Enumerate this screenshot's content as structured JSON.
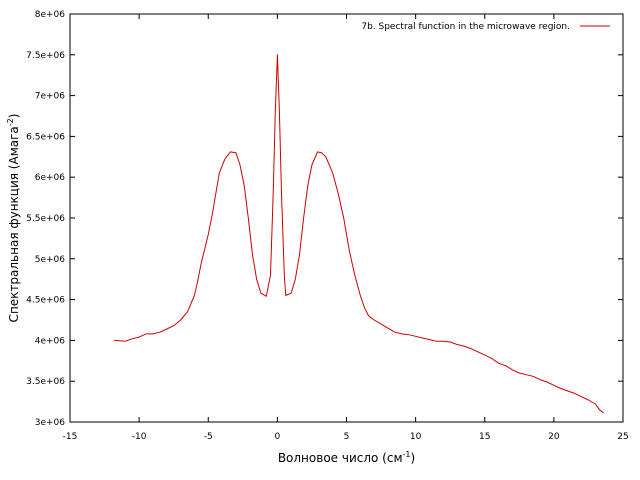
{
  "chart_data": {
    "type": "line",
    "title": "",
    "xlabel": "Волновое число (см",
    "xlabel_sup": "-1",
    "xlabel_end": ")",
    "ylabel": "Спектральная функция (Амага",
    "ylabel_sup": "-2",
    "ylabel_end": ")",
    "xlim": [
      -15,
      25
    ],
    "ylim": [
      3000000,
      8000000
    ],
    "xticks": [
      -15,
      -10,
      -5,
      0,
      5,
      10,
      15,
      20,
      25
    ],
    "xtick_labels": [
      "-15",
      "-10",
      "-5",
      "0",
      "5",
      "10",
      "15",
      "20",
      "25"
    ],
    "yticks": [
      3000000,
      3500000,
      4000000,
      4500000,
      5000000,
      5500000,
      6000000,
      6500000,
      7000000,
      7500000,
      8000000
    ],
    "ytick_labels": [
      "3e+06",
      "3.5e+06",
      "4e+06",
      "4.5e+06",
      "5e+06",
      "5.5e+06",
      "6e+06",
      "6.5e+06",
      "7e+06",
      "7.5e+06",
      "8e+06"
    ],
    "grid": false,
    "legend_position": "top-right",
    "series": [
      {
        "name": "7b. Spectral function in the microwave region.",
        "color": "#cc0000",
        "points": [
          [
            -11.8,
            4000000
          ],
          [
            -11.0,
            3990000
          ],
          [
            -10.5,
            4020000
          ],
          [
            -10.0,
            4040000
          ],
          [
            -9.5,
            4080000
          ],
          [
            -9.0,
            4080000
          ],
          [
            -8.5,
            4100000
          ],
          [
            -8.0,
            4140000
          ],
          [
            -7.5,
            4180000
          ],
          [
            -7.0,
            4250000
          ],
          [
            -6.5,
            4350000
          ],
          [
            -6.0,
            4550000
          ],
          [
            -5.8,
            4700000
          ],
          [
            -5.5,
            4950000
          ],
          [
            -5.0,
            5300000
          ],
          [
            -4.7,
            5550000
          ],
          [
            -4.4,
            5850000
          ],
          [
            -4.2,
            6050000
          ],
          [
            -3.8,
            6220000
          ],
          [
            -3.4,
            6310000
          ],
          [
            -3.0,
            6300000
          ],
          [
            -2.7,
            6150000
          ],
          [
            -2.4,
            5900000
          ],
          [
            -2.1,
            5500000
          ],
          [
            -1.8,
            5050000
          ],
          [
            -1.5,
            4750000
          ],
          [
            -1.2,
            4580000
          ],
          [
            -0.8,
            4540000
          ],
          [
            -0.5,
            4800000
          ],
          [
            -0.3,
            5800000
          ],
          [
            -0.15,
            6800000
          ],
          [
            0.0,
            7500000
          ],
          [
            0.15,
            6800000
          ],
          [
            0.3,
            5800000
          ],
          [
            0.5,
            4800000
          ],
          [
            0.6,
            4550000
          ],
          [
            1.0,
            4580000
          ],
          [
            1.3,
            4750000
          ],
          [
            1.6,
            5050000
          ],
          [
            1.9,
            5500000
          ],
          [
            2.2,
            5900000
          ],
          [
            2.5,
            6150000
          ],
          [
            2.9,
            6310000
          ],
          [
            3.2,
            6300000
          ],
          [
            3.5,
            6250000
          ],
          [
            4.0,
            6050000
          ],
          [
            4.4,
            5800000
          ],
          [
            4.8,
            5500000
          ],
          [
            5.2,
            5100000
          ],
          [
            5.6,
            4800000
          ],
          [
            6.0,
            4550000
          ],
          [
            6.3,
            4400000
          ],
          [
            6.6,
            4300000
          ],
          [
            7.0,
            4250000
          ],
          [
            7.5,
            4200000
          ],
          [
            8.0,
            4150000
          ],
          [
            8.5,
            4100000
          ],
          [
            9.0,
            4080000
          ],
          [
            9.5,
            4070000
          ],
          [
            10.0,
            4050000
          ],
          [
            10.5,
            4030000
          ],
          [
            11.0,
            4010000
          ],
          [
            11.5,
            3990000
          ],
          [
            12.0,
            3990000
          ],
          [
            12.5,
            3980000
          ],
          [
            13.0,
            3950000
          ],
          [
            13.5,
            3930000
          ],
          [
            14.0,
            3900000
          ],
          [
            14.5,
            3860000
          ],
          [
            15.0,
            3820000
          ],
          [
            15.5,
            3780000
          ],
          [
            16.0,
            3720000
          ],
          [
            16.5,
            3690000
          ],
          [
            17.0,
            3640000
          ],
          [
            17.5,
            3600000
          ],
          [
            18.0,
            3580000
          ],
          [
            18.5,
            3560000
          ],
          [
            19.0,
            3520000
          ],
          [
            19.5,
            3490000
          ],
          [
            20.0,
            3450000
          ],
          [
            20.5,
            3410000
          ],
          [
            21.0,
            3380000
          ],
          [
            21.5,
            3350000
          ],
          [
            22.0,
            3310000
          ],
          [
            22.5,
            3270000
          ],
          [
            23.0,
            3220000
          ],
          [
            23.3,
            3150000
          ],
          [
            23.6,
            3110000
          ]
        ]
      }
    ]
  }
}
